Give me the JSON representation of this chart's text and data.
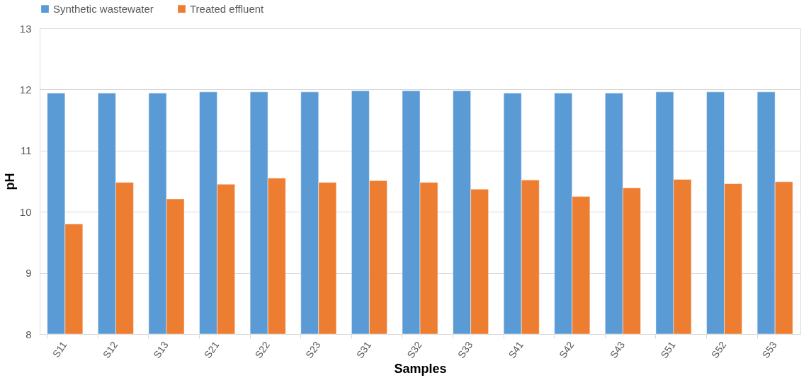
{
  "chart_data": {
    "type": "bar",
    "xlabel": "Samples",
    "ylabel": "pH",
    "categories": [
      "S11",
      "S12",
      "S13",
      "S21",
      "S22",
      "S23",
      "S31",
      "S32",
      "S33",
      "S41",
      "S42",
      "S43",
      "S51",
      "S52",
      "S53"
    ],
    "series": [
      {
        "name": "Synthetic wastewater",
        "color": "#5b9bd5",
        "values": [
          11.94,
          11.94,
          11.94,
          11.96,
          11.96,
          11.96,
          11.98,
          11.98,
          11.98,
          11.94,
          11.94,
          11.94,
          11.96,
          11.96,
          11.96
        ]
      },
      {
        "name": "Treated effluent",
        "color": "#ed7d31",
        "values": [
          9.8,
          10.48,
          10.21,
          10.45,
          10.55,
          10.48,
          10.51,
          10.48,
          10.37,
          10.52,
          10.25,
          10.39,
          10.53,
          10.46,
          10.49
        ]
      }
    ],
    "ylim": [
      8,
      13
    ],
    "yticks": [
      8,
      9,
      10,
      11,
      12,
      13
    ],
    "grid": "y",
    "legend": "top"
  }
}
